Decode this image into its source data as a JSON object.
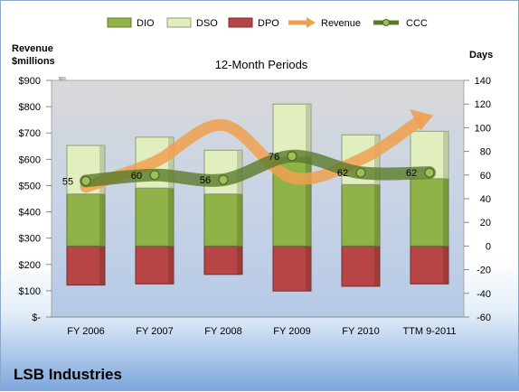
{
  "company": "LSB Industries",
  "chart_data": {
    "type": "bar",
    "title": "12-Month Periods",
    "left_axis": {
      "label": [
        "Revenue",
        "$millions"
      ],
      "ticks": [
        "$-",
        "$100",
        "$200",
        "$300",
        "$400",
        "$500",
        "$600",
        "$700",
        "$800",
        "$900"
      ],
      "ylim": [
        0,
        900
      ]
    },
    "right_axis": {
      "label": "Days",
      "ticks": [
        "-60",
        "-40",
        "-20",
        "0",
        "20",
        "40",
        "60",
        "80",
        "100",
        "120",
        "140"
      ],
      "ylim": [
        -60,
        140
      ]
    },
    "categories": [
      "FY 2006",
      "FY 2007",
      "FY 2008",
      "FY 2009",
      "FY 2010",
      "TTM 9-2011"
    ],
    "legend": [
      "DIO",
      "DSO",
      "DPO",
      "Revenue",
      "CCC"
    ],
    "legend_position": "top",
    "colors": {
      "DIO": "#8fb347",
      "DSO": "#e0efbd",
      "DPO": "#b84545",
      "Revenue": "#f0a050",
      "CCC": "#5a7a2a"
    },
    "series": [
      {
        "name": "DIO",
        "axis": "right",
        "values": [
          44,
          49,
          44,
          75,
          52,
          57
        ]
      },
      {
        "name": "DSO",
        "axis": "right",
        "values": [
          41,
          43,
          37,
          45,
          42,
          40
        ]
      },
      {
        "name": "DPO",
        "axis": "right",
        "values": [
          -33,
          -32,
          -24,
          -38,
          -34,
          -32
        ]
      },
      {
        "name": "Revenue",
        "axis": "left",
        "values": [
          495,
          590,
          730,
          530,
          600,
          760
        ]
      },
      {
        "name": "CCC",
        "axis": "right",
        "values": [
          55,
          60,
          56,
          76,
          62,
          62
        ]
      }
    ],
    "data_labels": [
      "55",
      "60",
      "56",
      "76",
      "62",
      "62"
    ],
    "grid": false
  }
}
